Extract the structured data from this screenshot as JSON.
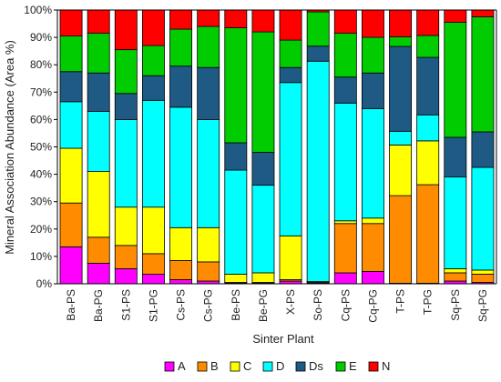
{
  "chart_data": {
    "type": "bar",
    "stacked": true,
    "title": "",
    "xlabel": "Sinter Plant",
    "ylabel": "Mineral Association Abundance (Area %)",
    "ylim": [
      0,
      100
    ],
    "yticks": [
      "0%",
      "10%",
      "20%",
      "30%",
      "40%",
      "50%",
      "60%",
      "70%",
      "80%",
      "90%",
      "100%"
    ],
    "grid": false,
    "legend_position": "bottom",
    "categories": [
      "Ba-PS",
      "Ba-PG",
      "S1-PS",
      "S1-PG",
      "Cs-PS",
      "Cs-PG",
      "Be-PS",
      "Be-PG",
      "X-PS",
      "So-PS",
      "Cq-PS",
      "Cq-PG",
      "T-PS",
      "T-PG",
      "Sq-PS",
      "Sq-PG"
    ],
    "series": [
      {
        "name": "A",
        "color": "#FF00FF",
        "values": [
          13.5,
          7.5,
          5.5,
          3.5,
          1.5,
          1.0,
          0.2,
          0.2,
          1.0,
          0.3,
          4.0,
          4.5,
          0.2,
          0.2,
          1.0,
          0.5
        ]
      },
      {
        "name": "B",
        "color": "#FF8C00",
        "values": [
          16.0,
          9.5,
          8.5,
          7.5,
          7.0,
          7.0,
          0.3,
          0.3,
          0.5,
          0.2,
          18.0,
          17.5,
          32.0,
          36.0,
          3.0,
          3.0
        ]
      },
      {
        "name": "C",
        "color": "#FFFF00",
        "values": [
          20.0,
          24.0,
          14.0,
          17.0,
          12.0,
          12.5,
          3.0,
          3.5,
          16.0,
          0.3,
          1.0,
          2.0,
          18.5,
          16.0,
          1.5,
          1.5
        ]
      },
      {
        "name": "D",
        "color": "#00FFFF",
        "values": [
          17.0,
          22.0,
          32.0,
          39.0,
          44.0,
          39.5,
          38.0,
          32.0,
          56.0,
          80.5,
          43.0,
          40.0,
          5.0,
          9.5,
          33.5,
          37.5
        ]
      },
      {
        "name": "Ds",
        "color": "#1F5A85",
        "values": [
          11.0,
          14.0,
          9.5,
          9.0,
          15.0,
          19.0,
          10.0,
          12.0,
          5.5,
          5.5,
          9.5,
          13.0,
          31.0,
          21.0,
          14.5,
          13.0
        ]
      },
      {
        "name": "E",
        "color": "#00CC00",
        "values": [
          13.0,
          14.5,
          16.0,
          11.0,
          13.5,
          15.0,
          42.0,
          44.0,
          10.0,
          12.5,
          16.0,
          13.0,
          3.5,
          8.0,
          42.0,
          42.0
        ]
      },
      {
        "name": "N",
        "color": "#FF0000",
        "values": [
          9.5,
          8.5,
          14.5,
          13.0,
          7.0,
          6.0,
          6.5,
          8.0,
          11.0,
          0.7,
          8.5,
          10.0,
          9.8,
          9.3,
          4.5,
          2.5
        ]
      }
    ]
  }
}
